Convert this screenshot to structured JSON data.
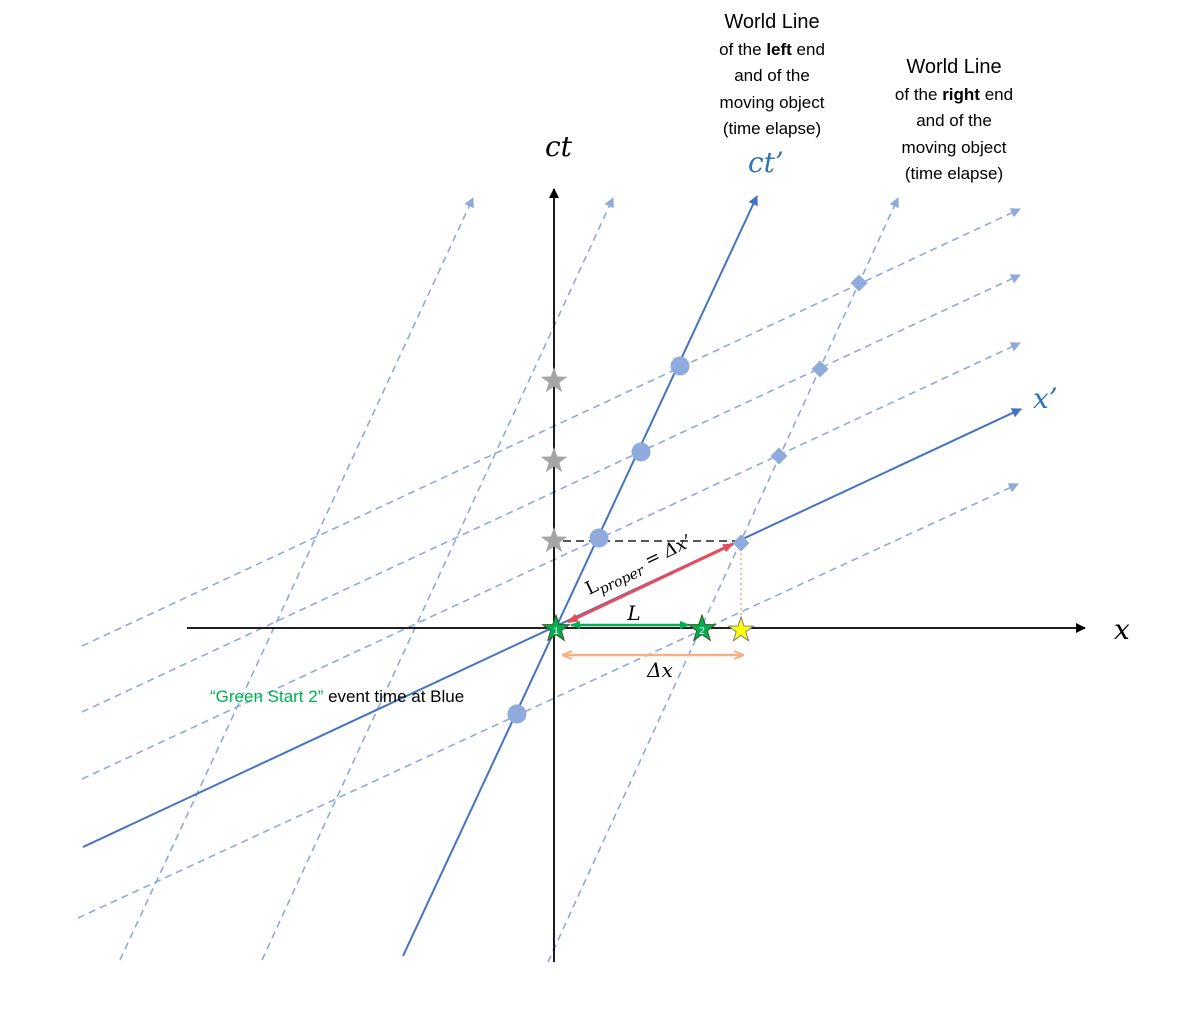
{
  "axes": {
    "x_label": "x",
    "ct_label": "ct",
    "ct_prime_label": "ct’",
    "x_prime_label": "x’"
  },
  "world_line_left": {
    "title": "World Line",
    "line1_pre": "of the ",
    "line1_bold": "left",
    "line1_post": " end",
    "line2": "and of the",
    "line3": "moving object",
    "line4": "(time elapse)"
  },
  "world_line_right": {
    "title": "World Line",
    "line1_pre": "of the ",
    "line1_bold": "right",
    "line1_post": " end",
    "line2": "and of the",
    "line3": "moving object",
    "line4": "(time elapse)"
  },
  "labels": {
    "L": "L",
    "delta_x": "Δx",
    "l_proper_L": "L",
    "l_proper_sub": "proper",
    "l_proper_rest": " = Δx’",
    "green_start_quote": "“Green Start 2”",
    "green_start_rest": " event time at Blue"
  },
  "markers": {
    "star_1": "1",
    "star_2": "2"
  },
  "colors": {
    "axis": "#000000",
    "primed_axis": "#4472c4",
    "primed_label": "#2e75b6",
    "grid_dashed": "#8eaadb",
    "marker_blue": "#8faadc",
    "star_gray": "#a6a6a6",
    "star_green": "#00b050",
    "star_yellow": "#ffff00",
    "arrow_green": "#00b050",
    "arrow_red": "#e84c5c",
    "arrow_orange": "#f4b183",
    "dashed_gray": "#595959",
    "dotted_orange": "#f4b183",
    "green_text": "#00b050"
  },
  "icons": {
    "event_circle": "circle",
    "event_diamond": "diamond",
    "event_star": "star"
  }
}
